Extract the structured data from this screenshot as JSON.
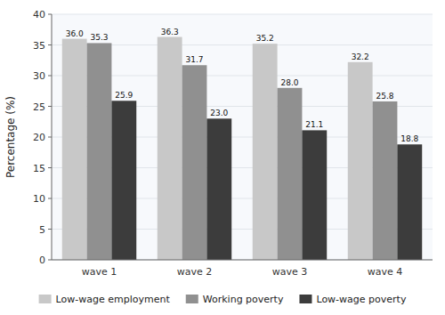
{
  "chart_data": {
    "type": "bar",
    "categories": [
      "wave 1",
      "wave 2",
      "wave 3",
      "wave 4"
    ],
    "series": [
      {
        "name": "Low-wage employment",
        "color": "#c8c8c8",
        "values": [
          36.0,
          36.3,
          35.2,
          32.2
        ],
        "value_labels": [
          "36.0",
          "36.3",
          "35.2",
          "32.2"
        ]
      },
      {
        "name": "Working poverty",
        "color": "#909090",
        "values": [
          35.3,
          31.7,
          28.0,
          25.8
        ],
        "value_labels": [
          "35.3",
          "31.7",
          "28.0",
          "25.8"
        ]
      },
      {
        "name": "Low-wage poverty",
        "color": "#3c3c3c",
        "values": [
          25.9,
          23.0,
          21.1,
          18.8
        ],
        "value_labels": [
          "25.9",
          "23.0",
          "21.1",
          "18.8"
        ]
      }
    ],
    "ylabel": "Percentage (%)",
    "ylim": [
      0,
      40
    ],
    "yticks": [
      0,
      5,
      10,
      15,
      20,
      25,
      30,
      35,
      40
    ],
    "grid": true,
    "data_labels": true,
    "legend": "bottom"
  }
}
